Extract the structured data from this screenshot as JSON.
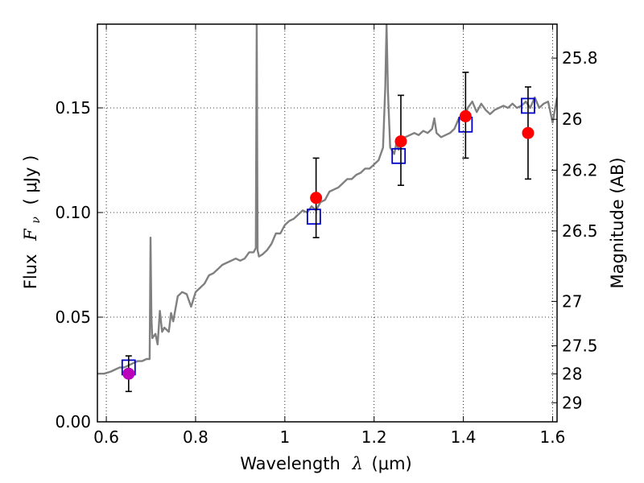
{
  "chart_data": {
    "type": "line",
    "title": "",
    "xlabel_text": "Wavelength",
    "xlabel_sym": "λ",
    "xlabel_unit": "(μm)",
    "ylabel_text": "Flux",
    "ylabel_sym": "F",
    "ylabel_sub": "ν",
    "ylabel_unit": "( μJy )",
    "y2label": "Magnitude (AB)",
    "xlim": [
      0.58,
      1.61
    ],
    "ylim": [
      0.0,
      0.19
    ],
    "grid": true,
    "x_ticks": [
      {
        "v": 0.6,
        "label": "0.6"
      },
      {
        "v": 0.8,
        "label": "0.8"
      },
      {
        "v": 1.0,
        "label": "1"
      },
      {
        "v": 1.2,
        "label": "1.2"
      },
      {
        "v": 1.4,
        "label": "1.4"
      },
      {
        "v": 1.6,
        "label": "1.6"
      }
    ],
    "y_ticks": [
      {
        "v": 0.0,
        "label": "0.00"
      },
      {
        "v": 0.05,
        "label": "0.05"
      },
      {
        "v": 0.1,
        "label": "0.10"
      },
      {
        "v": 0.15,
        "label": "0.15"
      }
    ],
    "mag_ticks": [
      {
        "mag": 25.8,
        "label": "25.8"
      },
      {
        "mag": 26.0,
        "label": "26"
      },
      {
        "mag": 26.2,
        "label": "26.2"
      },
      {
        "mag": 26.5,
        "label": "26.5"
      },
      {
        "mag": 27.0,
        "label": "27"
      },
      {
        "mag": 27.5,
        "label": "27.5"
      },
      {
        "mag": 28.0,
        "label": "28"
      },
      {
        "mag": 29.0,
        "label": "29"
      }
    ],
    "series": [
      {
        "name": "model-spectrum",
        "kind": "line",
        "color": "#808080",
        "x": [
          0.58,
          0.595,
          0.61,
          0.62,
          0.63,
          0.64,
          0.65,
          0.66,
          0.67,
          0.68,
          0.69,
          0.697,
          0.699,
          0.701,
          0.703,
          0.71,
          0.715,
          0.72,
          0.725,
          0.73,
          0.74,
          0.745,
          0.75,
          0.76,
          0.77,
          0.78,
          0.79,
          0.8,
          0.81,
          0.82,
          0.83,
          0.84,
          0.85,
          0.86,
          0.87,
          0.88,
          0.89,
          0.9,
          0.91,
          0.92,
          0.93,
          0.935,
          0.937,
          0.939,
          0.942,
          0.95,
          0.96,
          0.97,
          0.98,
          0.99,
          1.0,
          1.01,
          1.02,
          1.03,
          1.04,
          1.05,
          1.06,
          1.07,
          1.08,
          1.09,
          1.1,
          1.11,
          1.12,
          1.13,
          1.14,
          1.15,
          1.16,
          1.17,
          1.18,
          1.19,
          1.2,
          1.21,
          1.22,
          1.225,
          1.228,
          1.231,
          1.236,
          1.245,
          1.25,
          1.255,
          1.26,
          1.27,
          1.28,
          1.29,
          1.3,
          1.31,
          1.32,
          1.33,
          1.335,
          1.34,
          1.35,
          1.36,
          1.37,
          1.38,
          1.39,
          1.4,
          1.41,
          1.42,
          1.43,
          1.44,
          1.45,
          1.46,
          1.47,
          1.48,
          1.49,
          1.5,
          1.51,
          1.52,
          1.53,
          1.54,
          1.55,
          1.56,
          1.57,
          1.58,
          1.59,
          1.6,
          1.61
        ],
        "y": [
          0.023,
          0.023,
          0.024,
          0.025,
          0.026,
          0.026,
          0.027,
          0.028,
          0.029,
          0.029,
          0.03,
          0.03,
          0.088,
          0.05,
          0.04,
          0.042,
          0.037,
          0.053,
          0.043,
          0.045,
          0.043,
          0.052,
          0.048,
          0.06,
          0.062,
          0.061,
          0.055,
          0.062,
          0.064,
          0.066,
          0.07,
          0.071,
          0.073,
          0.075,
          0.076,
          0.077,
          0.078,
          0.077,
          0.078,
          0.081,
          0.081,
          0.083,
          0.19,
          0.082,
          0.079,
          0.08,
          0.082,
          0.085,
          0.09,
          0.09,
          0.094,
          0.096,
          0.097,
          0.099,
          0.101,
          0.1,
          0.103,
          0.101,
          0.105,
          0.106,
          0.11,
          0.111,
          0.112,
          0.114,
          0.116,
          0.116,
          0.118,
          0.119,
          0.121,
          0.121,
          0.123,
          0.125,
          0.131,
          0.16,
          0.19,
          0.158,
          0.131,
          0.128,
          0.133,
          0.13,
          0.136,
          0.136,
          0.137,
          0.138,
          0.137,
          0.139,
          0.138,
          0.14,
          0.145,
          0.138,
          0.136,
          0.137,
          0.138,
          0.14,
          0.145,
          0.144,
          0.15,
          0.153,
          0.148,
          0.152,
          0.149,
          0.147,
          0.149,
          0.15,
          0.151,
          0.15,
          0.152,
          0.15,
          0.151,
          0.153,
          0.15,
          0.155,
          0.15,
          0.152,
          0.153,
          0.143,
          0.155
        ]
      },
      {
        "name": "model-bandpass-fluxes",
        "kind": "open-square",
        "color": "#0000cc",
        "x": [
          0.65,
          1.065,
          1.255,
          1.405,
          1.545
        ],
        "y": [
          0.026,
          0.098,
          0.127,
          0.142,
          0.151
        ]
      },
      {
        "name": "observed-fluxes",
        "kind": "filled-circle",
        "x": [
          0.65,
          1.07,
          1.26,
          1.405,
          1.545
        ],
        "y": [
          0.023,
          0.107,
          0.134,
          0.146,
          0.138
        ],
        "err_lo": [
          0.0085,
          0.019,
          0.021,
          0.02,
          0.022
        ],
        "err_hi": [
          0.0085,
          0.019,
          0.022,
          0.021,
          0.022
        ],
        "colors": [
          "#bb00bb",
          "#ff0000",
          "#ff0000",
          "#ff0000",
          "#ff0000"
        ]
      }
    ]
  }
}
